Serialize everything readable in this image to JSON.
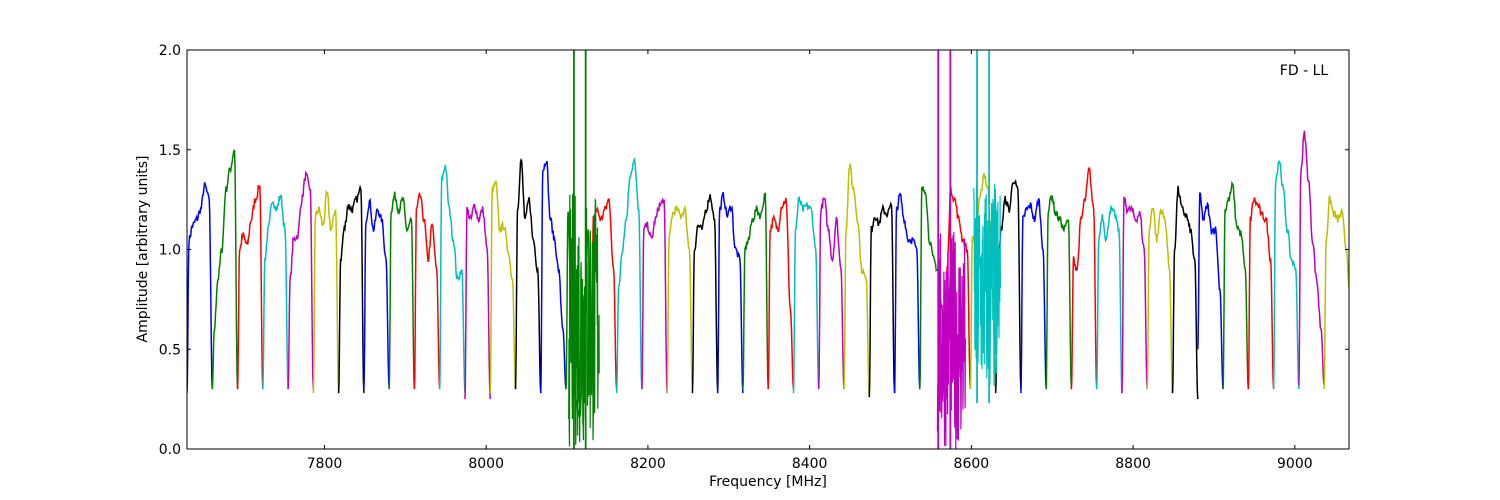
{
  "chart_data": {
    "type": "line",
    "title": "",
    "annotation": "FD - LL",
    "xlabel": "Frequency [MHz]",
    "ylabel": "Amplitude [arbitrary units]",
    "xlim": [
      7630,
      9067
    ],
    "ylim": [
      0.0,
      2.0
    ],
    "grid": false,
    "xticks": [
      7800,
      8000,
      8200,
      8400,
      8600,
      8800,
      9000
    ],
    "xtick_labels": [
      "7800",
      "8000",
      "8200",
      "8400",
      "8600",
      "8800",
      "9000"
    ],
    "yticks": [
      0.0,
      0.5,
      1.0,
      1.5,
      2.0
    ],
    "ytick_labels": [
      "0.0",
      "0.5",
      "1.0",
      "1.5",
      "2.0"
    ],
    "colors": {
      "b": "#0000ff",
      "g": "#008000",
      "r": "#ff0000",
      "c": "#00bfbf",
      "m": "#bf00bf",
      "y": "#bfbf00",
      "k": "#000000"
    },
    "subband_start_mhz": 7630,
    "subband_width_mhz": 31.25,
    "profile_fractions": [
      0,
      0.08,
      0.22,
      0.38,
      0.54,
      0.7,
      0.88,
      1
    ],
    "series": [
      {
        "color": "b",
        "values": [
          0.28,
          1.05,
          1.12,
          1.15,
          1.2,
          1.32,
          1.25,
          0.3
        ]
      },
      {
        "color": "g",
        "values": [
          0.3,
          0.6,
          0.85,
          1.0,
          1.3,
          1.4,
          1.5,
          0.3
        ]
      },
      {
        "color": "r",
        "values": [
          0.3,
          1.0,
          1.07,
          1.02,
          1.15,
          1.25,
          1.32,
          0.3
        ]
      },
      {
        "color": "c",
        "values": [
          0.3,
          0.95,
          1.1,
          1.25,
          1.2,
          1.27,
          1.1,
          0.3
        ]
      },
      {
        "color": "m",
        "values": [
          0.3,
          0.85,
          1.05,
          1.07,
          1.25,
          1.37,
          1.3,
          0.3
        ]
      },
      {
        "color": "y",
        "values": [
          0.28,
          1.17,
          1.2,
          1.12,
          1.28,
          1.1,
          1.2,
          0.28
        ]
      },
      {
        "color": "k",
        "values": [
          0.28,
          0.95,
          1.1,
          1.22,
          1.2,
          1.25,
          1.3,
          0.28
        ]
      },
      {
        "color": "b",
        "values": [
          0.3,
          1.15,
          1.24,
          1.1,
          1.2,
          1.15,
          0.95,
          0.3
        ]
      },
      {
        "color": "g",
        "values": [
          0.3,
          1.2,
          1.27,
          1.2,
          1.25,
          1.1,
          1.15,
          0.3
        ]
      },
      {
        "color": "r",
        "values": [
          0.3,
          1.2,
          1.27,
          1.15,
          0.95,
          1.12,
          0.9,
          0.3
        ]
      },
      {
        "color": "c",
        "values": [
          0.3,
          1.35,
          1.42,
          1.2,
          1.05,
          0.85,
          0.9,
          0.28
        ]
      },
      {
        "color": "m",
        "values": [
          0.25,
          1.2,
          1.15,
          1.22,
          1.15,
          1.2,
          1.0,
          0.25
        ]
      },
      {
        "color": "y",
        "values": [
          0.28,
          1.3,
          1.33,
          1.1,
          1.12,
          1.0,
          0.85,
          0.3
        ]
      },
      {
        "color": "k",
        "values": [
          0.3,
          1.2,
          1.45,
          1.15,
          1.25,
          1.05,
          0.9,
          0.28
        ]
      },
      {
        "color": "b",
        "values": [
          0.28,
          1.4,
          1.45,
          1.15,
          1.05,
          0.9,
          0.6,
          0.3
        ]
      },
      {
        "color": "g",
        "values": [
          0.3,
          1.2,
          0.6,
          0.25,
          0.15,
          0.5,
          1.1,
          0.3
        ]
      },
      {
        "color": "r",
        "values": [
          0.3,
          1.15,
          1.2,
          1.15,
          1.2,
          1.25,
          0.9,
          0.3
        ]
      },
      {
        "color": "c",
        "values": [
          0.28,
          0.8,
          1.0,
          1.15,
          1.38,
          1.44,
          1.2,
          0.3
        ]
      },
      {
        "color": "m",
        "values": [
          0.3,
          1.1,
          1.12,
          1.05,
          1.15,
          1.22,
          1.25,
          0.28
        ]
      },
      {
        "color": "y",
        "values": [
          0.28,
          1.05,
          1.18,
          1.2,
          1.17,
          1.2,
          1.0,
          0.3
        ]
      },
      {
        "color": "k",
        "values": [
          0.28,
          1.0,
          1.12,
          1.1,
          1.2,
          1.27,
          1.15,
          0.28
        ]
      },
      {
        "color": "b",
        "values": [
          0.28,
          1.2,
          1.27,
          1.17,
          1.22,
          1.0,
          0.95,
          0.28
        ]
      },
      {
        "color": "g",
        "values": [
          0.3,
          1.0,
          1.05,
          1.15,
          1.2,
          1.17,
          1.28,
          0.3
        ]
      },
      {
        "color": "r",
        "values": [
          0.3,
          1.1,
          1.15,
          1.1,
          1.22,
          1.25,
          0.7,
          0.3
        ]
      },
      {
        "color": "c",
        "values": [
          0.28,
          1.1,
          1.25,
          1.2,
          1.22,
          1.2,
          1.0,
          0.3
        ]
      },
      {
        "color": "m",
        "values": [
          0.3,
          1.2,
          1.25,
          1.1,
          0.95,
          1.15,
          0.9,
          0.3
        ]
      },
      {
        "color": "y",
        "values": [
          0.3,
          1.1,
          1.42,
          1.3,
          1.15,
          0.9,
          0.85,
          0.26
        ]
      },
      {
        "color": "k",
        "values": [
          0.26,
          1.1,
          1.17,
          1.13,
          1.2,
          1.18,
          1.22,
          0.28
        ]
      },
      {
        "color": "b",
        "values": [
          0.28,
          1.2,
          1.27,
          1.15,
          1.05,
          1.05,
          1.0,
          0.3
        ]
      },
      {
        "color": "g",
        "values": [
          0.3,
          1.3,
          1.3,
          1.05,
          0.95,
          0.9,
          0.7,
          0.3
        ]
      },
      {
        "color": "r",
        "values": [
          0.3,
          0.9,
          1.3,
          1.25,
          1.15,
          1.05,
          1.0,
          0.3
        ]
      },
      {
        "color": "y",
        "values": [
          0.3,
          1.05,
          1.1,
          1.25,
          1.38,
          1.3,
          0.8,
          0.3
        ]
      },
      {
        "color": "k",
        "values": [
          0.28,
          0.9,
          1.1,
          1.25,
          1.2,
          1.35,
          1.3,
          0.3
        ]
      },
      {
        "color": "b",
        "values": [
          0.28,
          1.15,
          1.2,
          1.22,
          1.15,
          1.25,
          1.0,
          0.3
        ]
      },
      {
        "color": "g",
        "values": [
          0.3,
          1.2,
          1.27,
          1.18,
          1.15,
          1.1,
          1.15,
          0.3
        ]
      },
      {
        "color": "r",
        "values": [
          0.3,
          0.95,
          0.9,
          1.15,
          1.25,
          1.4,
          1.2,
          0.3
        ]
      },
      {
        "color": "c",
        "values": [
          0.3,
          1.05,
          1.17,
          1.05,
          1.2,
          1.18,
          1.1,
          0.28
        ]
      },
      {
        "color": "m",
        "values": [
          0.28,
          1.25,
          1.2,
          1.2,
          1.15,
          1.18,
          1.0,
          0.3
        ]
      },
      {
        "color": "y",
        "values": [
          0.3,
          1.1,
          1.22,
          1.05,
          1.2,
          1.15,
          0.9,
          0.28
        ]
      },
      {
        "color": "k",
        "values": [
          0.28,
          1.0,
          1.3,
          1.2,
          1.17,
          1.1,
          0.95,
          0.25
        ]
      },
      {
        "color": "b",
        "values": [
          0.5,
          1.27,
          1.15,
          1.22,
          1.1,
          1.1,
          0.8,
          0.3
        ]
      },
      {
        "color": "g",
        "values": [
          0.3,
          1.2,
          1.25,
          1.32,
          1.12,
          1.08,
          0.9,
          0.3
        ]
      },
      {
        "color": "r",
        "values": [
          0.3,
          1.15,
          1.25,
          1.22,
          1.17,
          1.15,
          0.95,
          0.3
        ]
      },
      {
        "color": "c",
        "values": [
          0.3,
          1.35,
          1.45,
          1.3,
          1.1,
          0.95,
          0.9,
          0.3
        ]
      },
      {
        "color": "m",
        "values": [
          0.32,
          1.4,
          1.58,
          1.35,
          1.05,
          0.85,
          0.6,
          0.32
        ]
      },
      {
        "color": "y",
        "values": [
          0.3,
          1.05,
          1.25,
          1.18,
          1.15,
          1.18,
          1.0,
          0.8
        ]
      }
    ],
    "rfi": [
      {
        "color": "g",
        "f_start": 8102,
        "f_end": 8140,
        "min": 0.0,
        "max": 1.3,
        "spikes": [
          8108.5,
          8123
        ],
        "spike_level": 2.0
      },
      {
        "color": "m",
        "f_start": 8558,
        "f_end": 8593,
        "min": 0.0,
        "max": 1.1,
        "spikes": [
          8559,
          8574
        ],
        "spike_level": 2.0
      },
      {
        "color": "c",
        "f_start": 8603,
        "f_end": 8636,
        "min": 0.23,
        "max": 1.35,
        "spikes": [
          8607,
          8622
        ],
        "spike_level": 2.0
      }
    ]
  }
}
